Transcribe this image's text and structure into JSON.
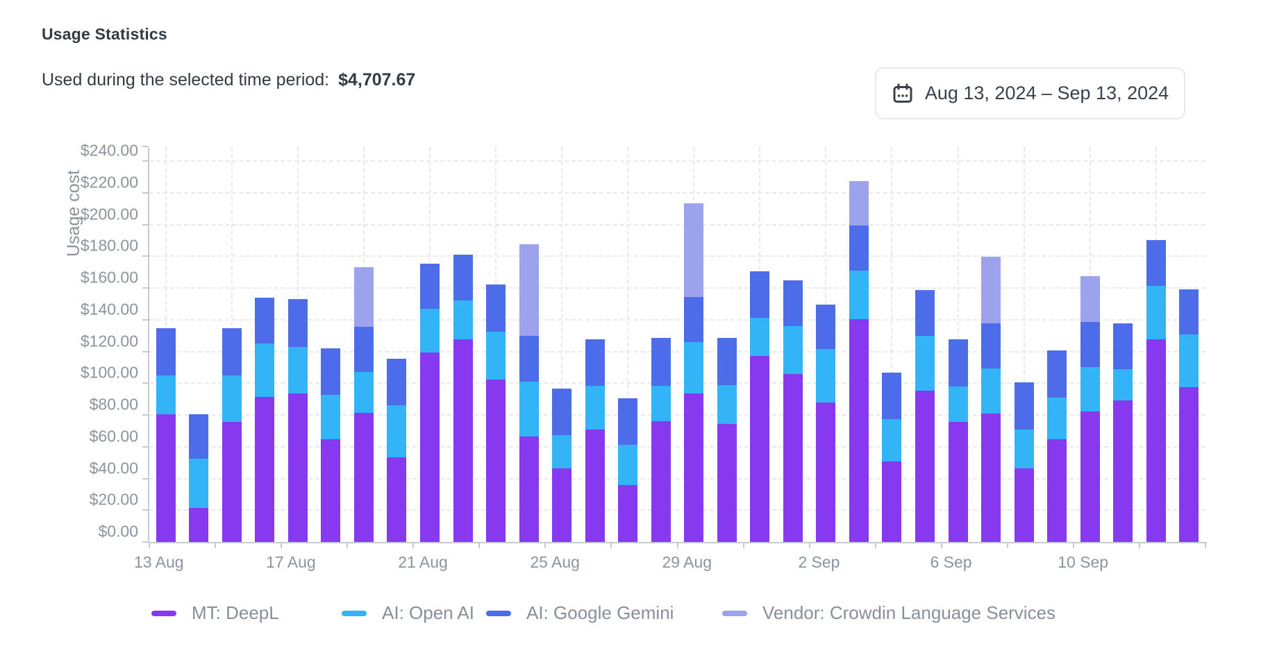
{
  "header": {
    "title": "Usage Statistics",
    "subtitle_label": "Used during the selected time period:",
    "subtitle_value": "$4,707.67",
    "date_range": "Aug 13, 2024 – Sep 13, 2024"
  },
  "chart_data": {
    "type": "bar",
    "stacked": true,
    "ylabel": "Usage cost",
    "ylim": [
      0,
      240
    ],
    "y_tick_step": 20,
    "y_tick_labels": [
      "$0.00",
      "$20.00",
      "$40.00",
      "$60.00",
      "$80.00",
      "$100.00",
      "$120.00",
      "$140.00",
      "$160.00",
      "$180.00",
      "$200.00",
      "$220.00",
      "$240.00"
    ],
    "grid": true,
    "legend_position": "bottom",
    "categories": [
      "13 Aug",
      "14 Aug",
      "15 Aug",
      "16 Aug",
      "17 Aug",
      "18 Aug",
      "19 Aug",
      "20 Aug",
      "21 Aug",
      "22 Aug",
      "23 Aug",
      "24 Aug",
      "25 Aug",
      "26 Aug",
      "27 Aug",
      "28 Aug",
      "29 Aug",
      "30 Aug",
      "31 Aug",
      "1 Sep",
      "2 Sep",
      "3 Sep",
      "4 Sep",
      "5 Sep",
      "6 Sep",
      "7 Sep",
      "8 Sep",
      "9 Sep",
      "10 Sep",
      "11 Sep",
      "12 Sep",
      "13 Sep"
    ],
    "x_axis_ticks": [
      {
        "index": 0,
        "label": "13 Aug"
      },
      {
        "index": 4,
        "label": "17 Aug"
      },
      {
        "index": 8,
        "label": "21 Aug"
      },
      {
        "index": 12,
        "label": "25 Aug"
      },
      {
        "index": 16,
        "label": "29 Aug"
      },
      {
        "index": 20,
        "label": "2 Sep"
      },
      {
        "index": 24,
        "label": "6 Sep"
      },
      {
        "index": 28,
        "label": "10 Sep"
      }
    ],
    "series": [
      {
        "name": "MT: DeepL",
        "color": "#8739F0",
        "values": [
          80.5,
          21.5,
          75.5,
          91.5,
          93.5,
          64.5,
          81.5,
          53.5,
          119.5,
          127.5,
          102.5,
          66.5,
          46.5,
          71,
          36,
          76,
          93.5,
          74.5,
          117,
          106,
          88,
          140.5,
          50.5,
          95.5,
          75.5,
          81,
          46.5,
          64.5,
          82,
          89,
          127.5,
          97.5
        ]
      },
      {
        "name": "AI: Open AI",
        "color": "#32B4F6",
        "values": [
          24.5,
          31,
          29.5,
          33.5,
          29.5,
          28,
          25.5,
          32.5,
          27.5,
          24.5,
          30,
          34.5,
          21,
          27.5,
          25,
          22.5,
          32.5,
          24.5,
          24,
          30,
          33.5,
          30.5,
          27,
          34.5,
          22.5,
          28.5,
          24.5,
          26.5,
          28,
          20,
          34,
          33
        ]
      },
      {
        "name": "AI: Google Gemini",
        "color": "#4C6CE9",
        "values": [
          29.5,
          28,
          29.5,
          29,
          30,
          29.5,
          28.5,
          29.5,
          28.5,
          29,
          29.5,
          29,
          29,
          29,
          29.5,
          30,
          28.5,
          29.5,
          29.5,
          29,
          28,
          28.5,
          29,
          28.5,
          29.5,
          28,
          29.5,
          29.5,
          28.5,
          28.5,
          28.5,
          28.5
        ]
      },
      {
        "name": "Vendor: Crowdin Language Services",
        "color": "#9CA3EC",
        "values": [
          0,
          0,
          0,
          0,
          0,
          0,
          37.5,
          0,
          0,
          0,
          0,
          57.5,
          0,
          0,
          0,
          0,
          59,
          0,
          0,
          0,
          0,
          28,
          0,
          0,
          0,
          42,
          0,
          0,
          29,
          0,
          0,
          0
        ]
      }
    ]
  },
  "colors": {
    "axis": "#c5cbd2",
    "gridline": "#e6e9ed",
    "tick_text": "#8b949c",
    "legend_text": "#878f98",
    "title_text": "#333b42"
  }
}
